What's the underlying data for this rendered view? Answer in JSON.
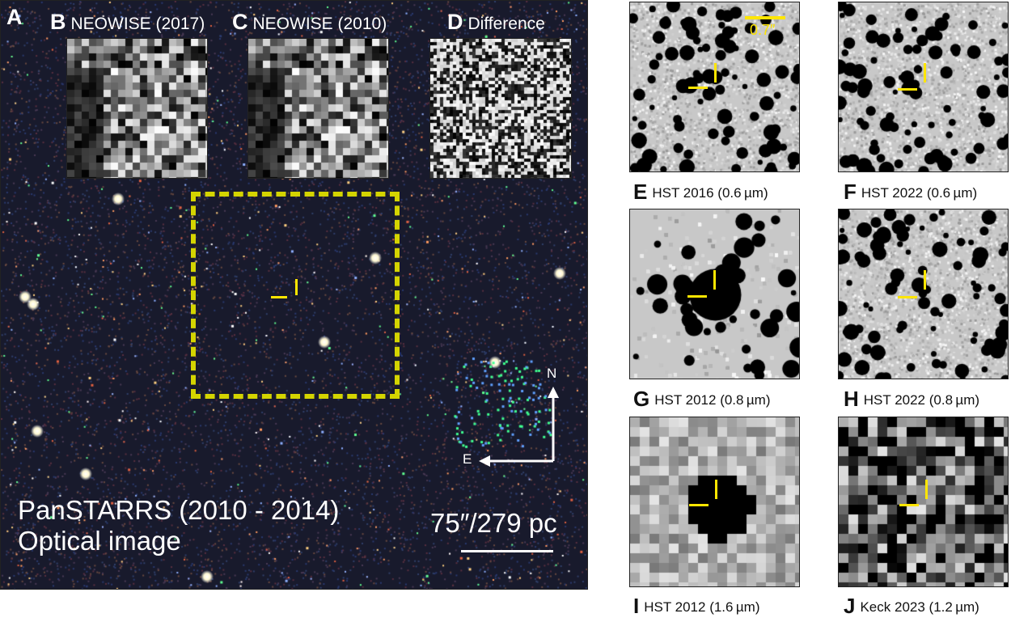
{
  "main_panel": {
    "letter": "A",
    "title_line1": "PanSTARRS (2010 - 2014)",
    "title_line2": "Optical image",
    "scale_label": "75″/279 pc",
    "compass": {
      "north": "N",
      "east": "E"
    }
  },
  "insets": [
    {
      "letter": "B",
      "label": "NEOWISE (2017)"
    },
    {
      "letter": "C",
      "label": "NEOWISE (2010)"
    },
    {
      "letter": "D",
      "label": "Difference"
    }
  ],
  "right_panels": [
    {
      "letter": "E",
      "label": "HST 2016 (0.6 µm)",
      "scale_label": "0.7″"
    },
    {
      "letter": "F",
      "label": "HST 2022 (0.6 µm)"
    },
    {
      "letter": "G",
      "label": "HST 2012 (0.8 µm)"
    },
    {
      "letter": "H",
      "label": "HST 2022 (0.8 µm)"
    },
    {
      "letter": "I",
      "label": "HST 2012 (1.6 µm)"
    },
    {
      "letter": "J",
      "label": "Keck 2023 (1.2 µm)"
    }
  ],
  "colors": {
    "marker": "#ffe600",
    "box": "#d4d400"
  }
}
